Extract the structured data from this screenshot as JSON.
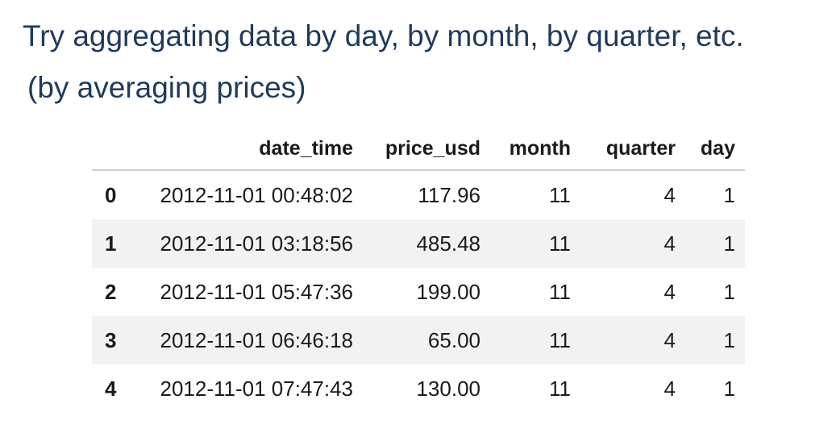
{
  "heading": {
    "line1": "Try aggregating data by day, by month, by quarter, etc.",
    "line2": "(by averaging prices)"
  },
  "table": {
    "columns": [
      "date_time",
      "price_usd",
      "month",
      "quarter",
      "day"
    ],
    "rows": [
      {
        "index": "0",
        "date_time": "2012-11-01 00:48:02",
        "price_usd": "117.96",
        "month": "11",
        "quarter": "4",
        "day": "1"
      },
      {
        "index": "1",
        "date_time": "2012-11-01 03:18:56",
        "price_usd": "485.48",
        "month": "11",
        "quarter": "4",
        "day": "1"
      },
      {
        "index": "2",
        "date_time": "2012-11-01 05:47:36",
        "price_usd": "199.00",
        "month": "11",
        "quarter": "4",
        "day": "1"
      },
      {
        "index": "3",
        "date_time": "2012-11-01 06:46:18",
        "price_usd": "65.00",
        "month": "11",
        "quarter": "4",
        "day": "1"
      },
      {
        "index": "4",
        "date_time": "2012-11-01 07:47:43",
        "price_usd": "130.00",
        "month": "11",
        "quarter": "4",
        "day": "1"
      }
    ]
  },
  "colors": {
    "heading_text": "#1f3a5c",
    "stripe": "#f2f2f2"
  }
}
